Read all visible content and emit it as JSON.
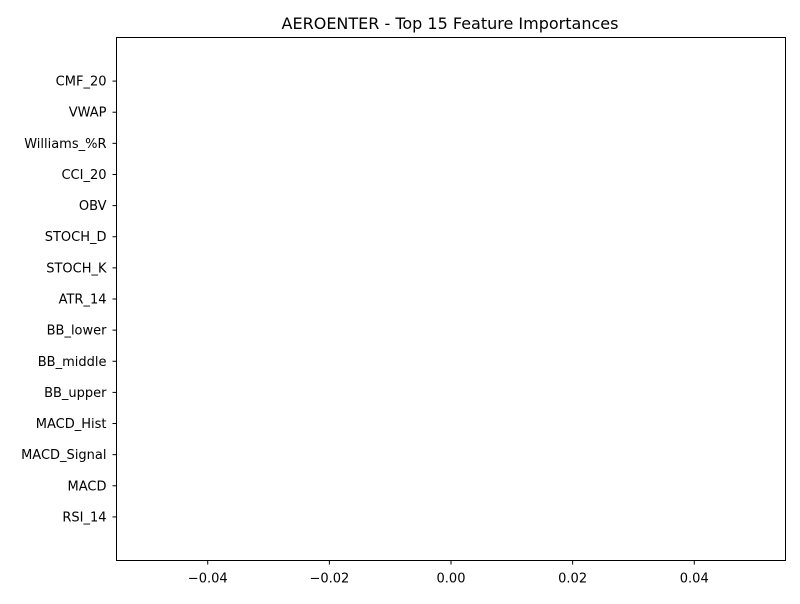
{
  "chart_data": {
    "type": "bar",
    "orientation": "horizontal",
    "title": "AEROENTER - Top 15 Feature Importances",
    "xlabel": "",
    "ylabel": "",
    "categories": [
      "RSI_14",
      "MACD",
      "MACD_Signal",
      "MACD_Hist",
      "BB_upper",
      "BB_middle",
      "BB_lower",
      "ATR_14",
      "STOCH_K",
      "STOCH_D",
      "OBV",
      "CCI_20",
      "Williams_%R",
      "VWAP",
      "CMF_20"
    ],
    "values": [
      0,
      0,
      0,
      0,
      0,
      0,
      0,
      0,
      0,
      0,
      0,
      0,
      0,
      0,
      0
    ],
    "xlim": [
      -0.055,
      0.055
    ],
    "xticks": [
      -0.04,
      -0.02,
      0.0,
      0.02,
      0.04
    ],
    "xtick_labels": [
      "−0.04",
      "−0.02",
      "0.00",
      "0.02",
      "0.04"
    ],
    "grid": false,
    "colors": {
      "bar": "#1f77b4",
      "axis": "#000000"
    }
  }
}
